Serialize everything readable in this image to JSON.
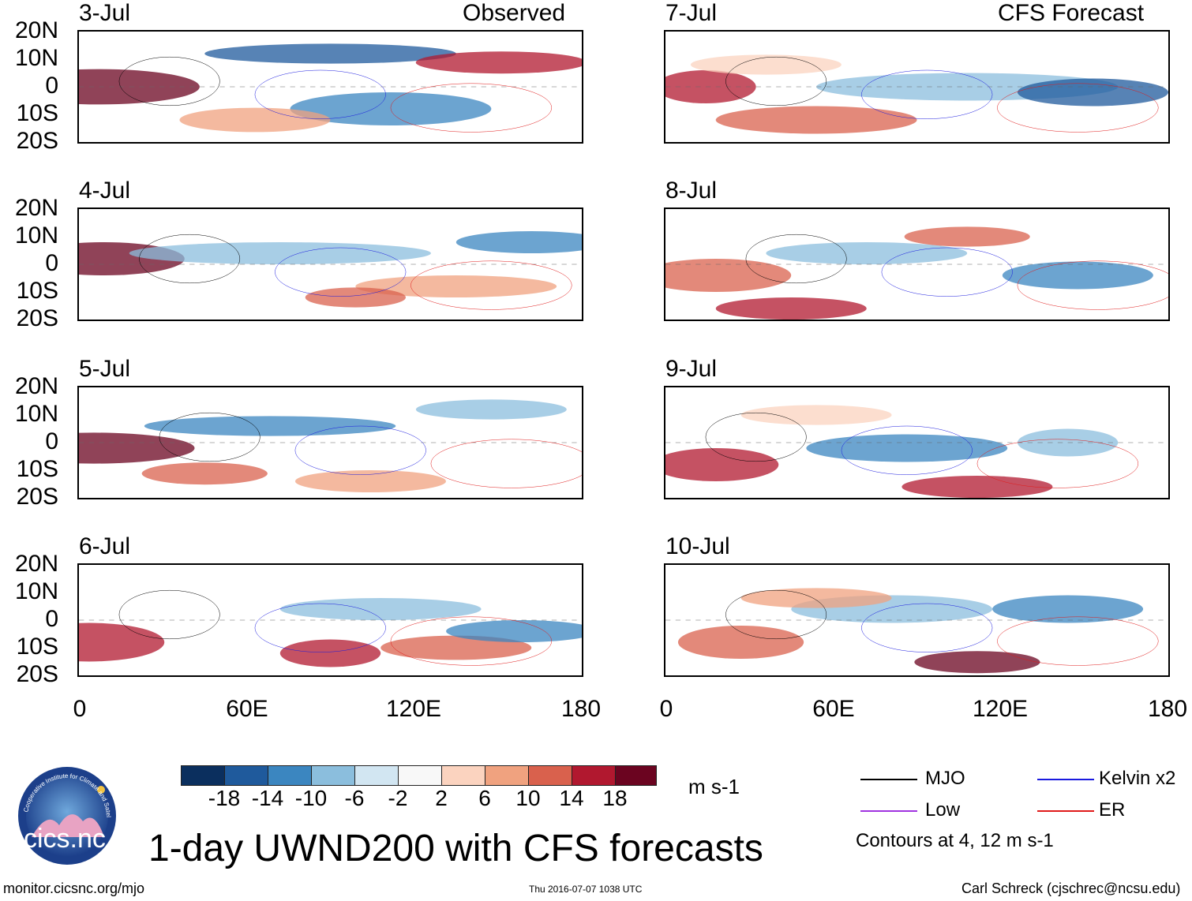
{
  "title": "1-day UWND200 with CFS forecasts",
  "left_column_label": "Observed",
  "right_column_label": "CFS Forecast",
  "panels": [
    {
      "date": "3-Jul"
    },
    {
      "date": "4-Jul"
    },
    {
      "date": "5-Jul"
    },
    {
      "date": "6-Jul"
    },
    {
      "date": "7-Jul"
    },
    {
      "date": "8-Jul"
    },
    {
      "date": "9-Jul"
    },
    {
      "date": "10-Jul"
    }
  ],
  "lat_labels": [
    "20N",
    "10N",
    "0",
    "10S",
    "20S"
  ],
  "lon_labels": [
    "0",
    "60E",
    "120E",
    "180"
  ],
  "colorbar": {
    "labels": [
      "-18",
      "-14",
      "-10",
      "-6",
      "-2",
      "2",
      "6",
      "10",
      "14",
      "18"
    ],
    "colors": [
      "#0b2f5e",
      "#1f5a9c",
      "#3b86c0",
      "#8bbedd",
      "#d2e6f2",
      "#f8f8f8",
      "#fbd3bf",
      "#f0a27f",
      "#d9614d",
      "#b1182f",
      "#6b0420"
    ],
    "units": "m s-1"
  },
  "legend": {
    "mjo": "MJO",
    "kelvin": "Kelvin x2",
    "low": "Low",
    "er": "ER",
    "note": "Contours at 4, 12 m s-1",
    "colors": {
      "mjo": "#000000",
      "kelvin": "#1a1adf",
      "low": "#a033e0",
      "er": "#e01a1a"
    }
  },
  "logo_text": "cics.nc",
  "logo_ring_text": "Cooperative Institute for Climate and Satellites",
  "footer": {
    "url": "monitor.cicsnc.org/mjo",
    "timestamp": "Thu 2016-07-07 1038 UTC",
    "credit": "Carl Schreck (cjschrec@ncsu.edu)"
  }
}
